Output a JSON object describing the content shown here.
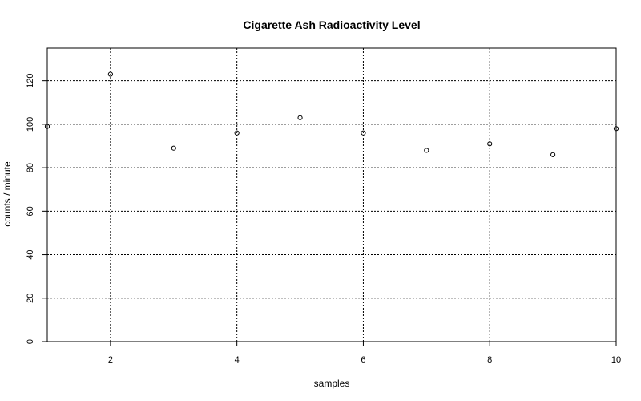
{
  "chart_data": {
    "type": "scatter",
    "title": "Cigarette Ash Radioactivity Level",
    "xlabel": "samples",
    "ylabel": "counts / minute",
    "x": [
      1,
      2,
      3,
      4,
      5,
      6,
      7,
      8,
      9,
      10
    ],
    "y": [
      99,
      123,
      89,
      96,
      103,
      96,
      88,
      91,
      86,
      98
    ],
    "xlim": [
      1,
      10
    ],
    "ylim": [
      0,
      135
    ],
    "xticks": [
      2,
      4,
      6,
      8,
      10
    ],
    "yticks": [
      0,
      20,
      40,
      60,
      80,
      100,
      120
    ],
    "grid": true,
    "grid_style": "dotted",
    "marker": "open-circle",
    "colors": {
      "point": "#000000",
      "grid": "#000000",
      "frame": "#000000"
    }
  }
}
